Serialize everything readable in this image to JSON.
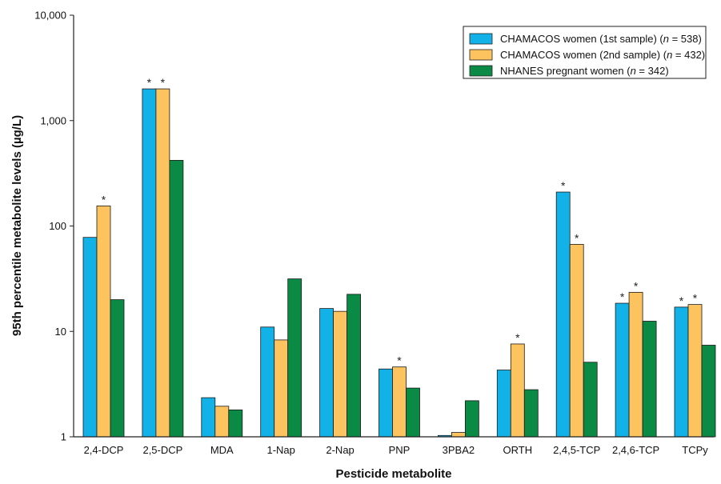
{
  "chart_data": {
    "type": "bar",
    "scale": "log",
    "ylim": [
      1,
      10000
    ],
    "y_ticks": [
      {
        "value": 1,
        "label": "1"
      },
      {
        "value": 10,
        "label": "10"
      },
      {
        "value": 100,
        "label": "100"
      },
      {
        "value": 1000,
        "label": "1,000"
      },
      {
        "value": 10000,
        "label": "10,000"
      }
    ],
    "xlabel": "Pesticide metabolite",
    "ylabel": "95th percentile metabolite levels (µg/L)",
    "categories": [
      "2,4-DCP",
      "2,5-DCP",
      "MDA",
      "1-Nap",
      "2-Nap",
      "PNP",
      "3PBA2",
      "ORTH",
      "2,4,5-TCP",
      "2,4,6-TCP",
      "TCPy"
    ],
    "significance_marker": "*",
    "legend_position": "top-right",
    "series": [
      {
        "name": "CHAMACOS women (1st sample) (n = 538)",
        "legend_main": "CHAMACOS women (1st sample) (",
        "legend_n": "n",
        "legend_tail": " = 538)",
        "color": "#12b2e8",
        "values": [
          78,
          2000,
          2.35,
          11,
          16.5,
          4.4,
          1.03,
          4.3,
          210,
          18.5,
          17
        ],
        "significant": [
          false,
          true,
          false,
          false,
          false,
          false,
          false,
          false,
          true,
          true,
          true
        ]
      },
      {
        "name": "CHAMACOS women (2nd sample) (n = 432)",
        "legend_main": "CHAMACOS women (2nd sample) (",
        "legend_n": "n",
        "legend_tail": " = 432)",
        "color": "#fdc35e",
        "values": [
          155,
          2000,
          1.95,
          8.3,
          15.5,
          4.6,
          1.1,
          7.6,
          67,
          23.5,
          18
        ],
        "significant": [
          true,
          true,
          false,
          false,
          false,
          true,
          false,
          true,
          true,
          true,
          true
        ]
      },
      {
        "name": "NHANES pregnant women (n = 342)",
        "legend_main": "NHANES pregnant women (",
        "legend_n": "n",
        "legend_tail": " = 342)",
        "color": "#0a8a44",
        "values": [
          20,
          420,
          1.8,
          31.5,
          22.5,
          2.9,
          2.2,
          2.8,
          5.1,
          12.5,
          7.4
        ],
        "significant": [
          false,
          false,
          false,
          false,
          false,
          false,
          false,
          false,
          false,
          false,
          false
        ]
      }
    ]
  }
}
